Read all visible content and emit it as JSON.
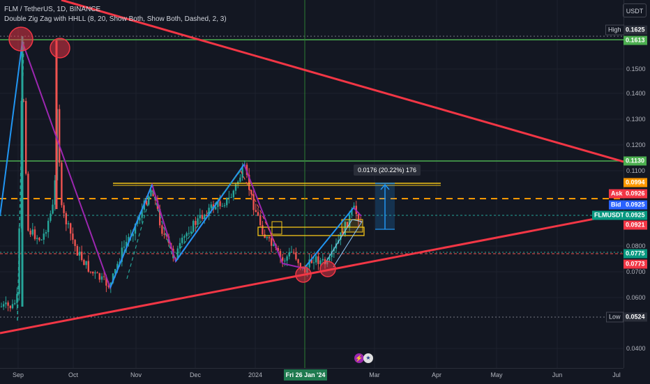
{
  "header": {
    "symbol_line": "FLM / TetherUS, 1D, BINANCE",
    "indicator_line": "Double Zig Zag with HHLL (8, 20, Show Both, Show Both, Dashed, 2, 3)"
  },
  "currency_button": "USDT",
  "y_ticks": [
    "0.1500",
    "0.1400",
    "0.1300",
    "0.1200",
    "0.1100",
    "0.0800",
    "0.0700",
    "0.0600",
    "0.0400"
  ],
  "x_ticks": [
    "Sep",
    "Oct",
    "Nov",
    "Dec",
    "2024",
    "Mar",
    "Apr",
    "May",
    "Jun",
    "Jul"
  ],
  "crosshair_date": "Fri 26 Jan '24",
  "measure_label": "0.0176 (20.22%) 176",
  "price_labels": {
    "high_tag": "High",
    "high_value": "0.1625",
    "level_top": "0.1613",
    "level_resist": "0.1130",
    "orange_level": "0.0994",
    "ask_tag": "Ask",
    "ask_value": "0.0926",
    "bid_tag": "Bid",
    "bid_value": "0.0925",
    "symbol_tag": "FLMUSDT",
    "symbol_value": "0.0925",
    "close_value": "0.0921",
    "support_a": "0.0775",
    "support_b": "0.0773",
    "low_tag": "Low",
    "low_value": "0.0524"
  },
  "colors": {
    "background": "#131722",
    "up": "#26a69a",
    "down": "#ef5350",
    "trendline": "#f23645",
    "horizontal_green": "#4caf50",
    "zigzag_blue": "#2196f3",
    "zigzag_purple": "#9c27b0",
    "orange_dash": "#ff9800",
    "yellow_box": "#f5c518"
  },
  "events": [
    "lightning-icon",
    "us-flag-icon"
  ]
}
